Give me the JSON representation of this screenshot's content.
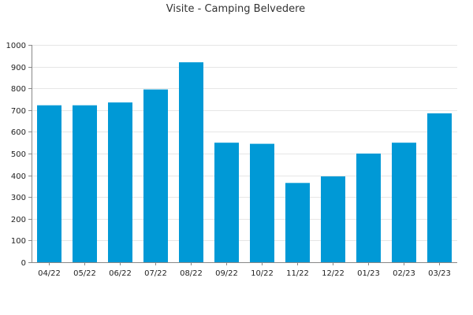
{
  "chart_data": {
    "type": "bar",
    "title": "Visite - Camping Belvedere",
    "xlabel": "",
    "ylabel": "",
    "categories": [
      "04/22",
      "05/22",
      "06/22",
      "07/22",
      "08/22",
      "09/22",
      "10/22",
      "11/22",
      "12/22",
      "01/23",
      "02/23",
      "03/23"
    ],
    "values": [
      722,
      722,
      735,
      795,
      920,
      550,
      545,
      365,
      395,
      500,
      550,
      685
    ],
    "ylim": [
      0,
      1000
    ],
    "yticks": [
      0,
      100,
      200,
      300,
      400,
      500,
      600,
      700,
      800,
      900,
      1000
    ],
    "grid": true,
    "legend": "none",
    "colors": {
      "bar": "#0099d6"
    }
  }
}
